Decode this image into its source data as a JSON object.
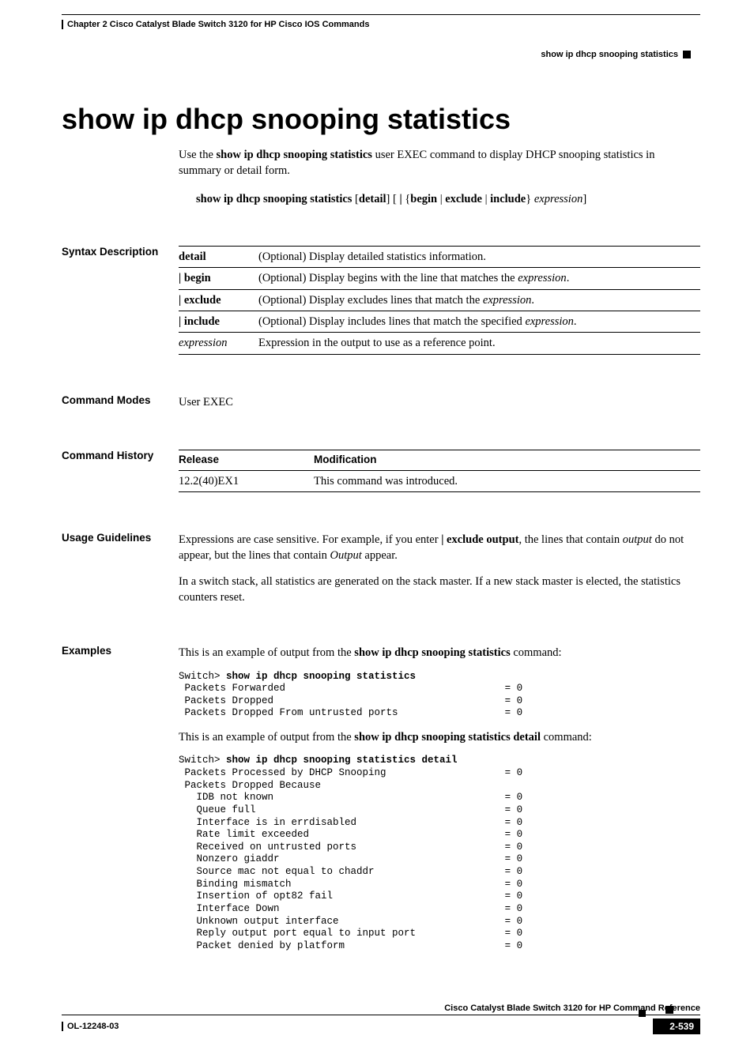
{
  "header": {
    "chapter": "Chapter 2  Cisco Catalyst Blade Switch 3120 for HP Cisco IOS Commands",
    "topic": "show ip dhcp snooping statistics"
  },
  "title": "show ip dhcp snooping statistics",
  "intro": {
    "prefix": "Use the ",
    "cmd_bold": "show ip dhcp snooping statistics",
    "suffix": " user EXEC command to display DHCP snooping statistics in summary or detail form."
  },
  "syntax": {
    "cmd": "show ip dhcp snooping statistics",
    "opt_detail": "detail",
    "pipe": " | ",
    "begin": "begin",
    "exclude": "exclude",
    "include": "include",
    "expr": "expression"
  },
  "sections": {
    "syntax_desc": "Syntax Description",
    "cmd_modes": "Command Modes",
    "cmd_history": "Command History",
    "usage": "Usage Guidelines",
    "examples": "Examples"
  },
  "syntax_rows": [
    {
      "k": "detail",
      "bold": true,
      "pipe": false,
      "italic": false,
      "v_pre": "(Optional) Display detailed statistics information.",
      "v_ital": "",
      "v_post": ""
    },
    {
      "k": "begin",
      "bold": true,
      "pipe": true,
      "italic": false,
      "v_pre": "(Optional) Display begins with the line that matches the ",
      "v_ital": "expression",
      "v_post": "."
    },
    {
      "k": "exclude",
      "bold": true,
      "pipe": true,
      "italic": false,
      "v_pre": "(Optional) Display excludes lines that match the ",
      "v_ital": "expression",
      "v_post": "."
    },
    {
      "k": "include",
      "bold": true,
      "pipe": true,
      "italic": false,
      "v_pre": "(Optional) Display includes lines that match the specified ",
      "v_ital": "expression",
      "v_post": "."
    },
    {
      "k": "expression",
      "bold": false,
      "pipe": false,
      "italic": true,
      "v_pre": "Expression in the output to use as a reference point.",
      "v_ital": "",
      "v_post": ""
    }
  ],
  "cmd_modes_text": "User EXEC",
  "history": {
    "h1": "Release",
    "h2": "Modification",
    "r1": "12.2(40)EX1",
    "r2": "This command was introduced."
  },
  "usage_texts": {
    "p1_a": "Expressions are case sensitive. For example, if you enter ",
    "p1_b": "| exclude output",
    "p1_c": ", the lines that contain ",
    "p1_d": "output",
    "p1_e": " do not appear, but the lines that contain ",
    "p1_f": "Output",
    "p1_g": " appear.",
    "p2": "In a switch stack, all statistics are generated on the stack master. If a new stack master is elected, the statistics counters reset."
  },
  "examples": {
    "intro1_a": "This is an example of output from the ",
    "intro1_b": "show ip dhcp snooping statistics",
    "intro1_c": " command:",
    "block1": "Switch> show ip dhcp snooping statistics\n Packets Forwarded                                     = 0\n Packets Dropped                                       = 0\n Packets Dropped From untrusted ports                  = 0",
    "intro2_a": "This is an example of output from the ",
    "intro2_b": "show ip dhcp snooping statistics detail",
    "intro2_c": " command:",
    "block2": "Switch> show ip dhcp snooping statistics detail\n Packets Processed by DHCP Snooping                    = 0\n Packets Dropped Because\n   IDB not known                                       = 0\n   Queue full                                          = 0\n   Interface is in errdisabled                         = 0\n   Rate limit exceeded                                 = 0\n   Received on untrusted ports                         = 0\n   Nonzero giaddr                                      = 0\n   Source mac not equal to chaddr                      = 0\n   Binding mismatch                                    = 0\n   Insertion of opt82 fail                             = 0\n   Interface Down                                      = 0\n   Unknown output interface                            = 0\n   Reply output port equal to input port               = 0\n   Packet denied by platform                           = 0"
  },
  "footer": {
    "book": "Cisco Catalyst Blade Switch 3120 for HP Command Reference",
    "doc_id": "OL-12248-03",
    "page": "2-539"
  }
}
